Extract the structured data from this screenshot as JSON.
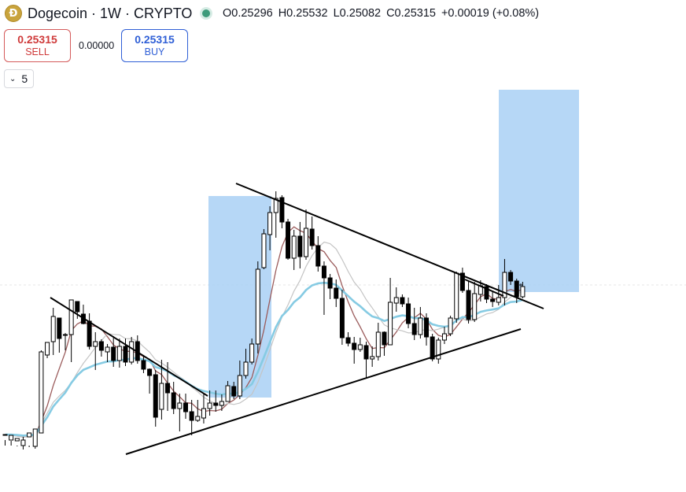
{
  "header": {
    "symbol": "Dogecoin · 1W · CRYPTO",
    "logo_glyph": "Ð",
    "ohlc": {
      "open": "O0.25296",
      "high": "H0.25532",
      "low": "L0.25082",
      "close": "C0.25315",
      "change": "+0.00019 (+0.08%)"
    }
  },
  "trade": {
    "sell_price": "0.25315",
    "sell_label": "SELL",
    "spread": "0.00000",
    "buy_price": "0.25315",
    "buy_label": "BUY"
  },
  "indicators_toggle": {
    "count": "5"
  },
  "colors": {
    "up": "#ffffff",
    "down": "#000000",
    "ma_fast": "#9b5c5c",
    "ma_mid": "#c4c4c4",
    "ma_slow": "#86cbe3",
    "box_fill": "#a9d0f5",
    "trendline": "#000000"
  },
  "chart_data": {
    "type": "candlestick",
    "interval": "1W",
    "y_scale": "unlabeled (price axis not visible)",
    "ohlc_bars": [
      [
        553,
        552,
        559,
        566
      ],
      [
        559,
        553,
        560,
        566
      ],
      [
        560,
        557,
        566,
        567
      ],
      [
        566,
        559,
        555,
        571
      ],
      [
        555,
        550,
        566,
        568
      ],
      [
        567,
        545,
        552,
        570
      ],
      [
        550,
        447,
        445,
        550
      ],
      [
        451,
        435,
        447,
        455
      ],
      [
        434,
        402,
        391,
        451
      ],
      [
        404,
        430,
        417,
        448
      ],
      [
        425,
        425,
        423,
        445
      ],
      [
        425,
        381,
        381,
        460
      ],
      [
        383,
        396,
        393,
        405
      ],
      [
        399,
        411,
        387,
        412
      ],
      [
        408,
        440,
        398,
        444
      ],
      [
        440,
        434,
        422,
        470
      ],
      [
        434,
        445,
        431,
        453
      ],
      [
        447,
        441,
        437,
        460
      ],
      [
        441,
        458,
        427,
        466
      ],
      [
        458,
        440,
        430,
        467
      ],
      [
        440,
        460,
        430,
        465
      ],
      [
        460,
        434,
        428,
        463
      ],
      [
        434,
        458,
        426,
        462
      ],
      [
        458,
        469,
        451,
        474
      ],
      [
        469,
        477,
        468,
        500
      ],
      [
        476,
        530,
        470,
        542
      ],
      [
        520,
        487,
        457,
        533
      ],
      [
        487,
        499,
        460,
        522
      ],
      [
        499,
        519,
        485,
        526
      ],
      [
        519,
        512,
        500,
        548
      ],
      [
        512,
        523,
        500,
        532
      ],
      [
        523,
        534,
        508,
        553
      ],
      [
        534,
        529,
        508,
        536
      ],
      [
        531,
        519,
        500,
        538
      ],
      [
        519,
        512,
        496,
        528
      ],
      [
        512,
        515,
        496,
        523
      ],
      [
        515,
        510,
        501,
        522
      ],
      [
        510,
        490,
        484,
        510
      ],
      [
        491,
        503,
        485,
        507
      ],
      [
        503,
        477,
        458,
        507
      ],
      [
        477,
        460,
        443,
        481
      ],
      [
        460,
        437,
        430,
        463
      ],
      [
        437,
        342,
        332,
        449
      ],
      [
        340,
        297,
        291,
        342
      ],
      [
        298,
        270,
        262,
        318
      ],
      [
        270,
        252,
        243,
        302
      ],
      [
        251,
        282,
        248,
        290
      ],
      [
        282,
        328,
        278,
        330
      ],
      [
        328,
        300,
        292,
        343
      ],
      [
        300,
        326,
        282,
        341
      ],
      [
        326,
        290,
        266,
        330
      ],
      [
        291,
        312,
        275,
        317
      ],
      [
        312,
        338,
        300,
        345
      ],
      [
        338,
        353,
        332,
        400
      ],
      [
        353,
        366,
        348,
        380
      ],
      [
        366,
        379,
        355,
        390
      ],
      [
        379,
        429,
        368,
        438
      ],
      [
        429,
        436,
        422,
        440
      ],
      [
        436,
        444,
        428,
        462
      ],
      [
        444,
        438,
        429,
        447
      ],
      [
        439,
        456,
        434,
        480
      ],
      [
        456,
        453,
        440,
        466
      ],
      [
        453,
        422,
        410,
        458
      ],
      [
        422,
        438,
        421,
        452
      ],
      [
        438,
        384,
        353,
        392
      ],
      [
        385,
        378,
        365,
        396
      ],
      [
        378,
        386,
        374,
        390
      ],
      [
        386,
        411,
        378,
        417
      ],
      [
        411,
        425,
        391,
        432
      ],
      [
        425,
        404,
        390,
        430
      ],
      [
        404,
        428,
        398,
        439
      ],
      [
        428,
        456,
        424,
        459
      ],
      [
        456,
        432,
        429,
        462
      ],
      [
        432,
        424,
        415,
        437
      ],
      [
        424,
        404,
        401,
        427
      ],
      [
        405,
        347,
        345,
        410
      ],
      [
        347,
        369,
        340,
        372
      ],
      [
        369,
        406,
        357,
        411
      ],
      [
        406,
        373,
        358,
        409
      ],
      [
        374,
        363,
        356,
        383
      ],
      [
        364,
        380,
        361,
        385
      ],
      [
        380,
        383,
        370,
        390
      ],
      [
        384,
        378,
        362,
        388
      ],
      [
        378,
        346,
        329,
        388
      ],
      [
        346,
        357,
        343,
        362
      ],
      [
        357,
        377,
        354,
        385
      ],
      [
        377,
        364,
        358,
        379
      ]
    ],
    "moving_averages": [
      {
        "name": "MA fast",
        "color": "#9b5c5c"
      },
      {
        "name": "MA mid",
        "color": "#c4c4c4"
      },
      {
        "name": "MA slow",
        "color": "#86cbe3"
      }
    ],
    "drawings": [
      {
        "kind": "trendline"
      },
      {
        "kind": "trendline"
      },
      {
        "kind": "trendline"
      },
      {
        "kind": "trendline"
      },
      {
        "kind": "measure-box"
      },
      {
        "kind": "measure-box"
      }
    ]
  }
}
